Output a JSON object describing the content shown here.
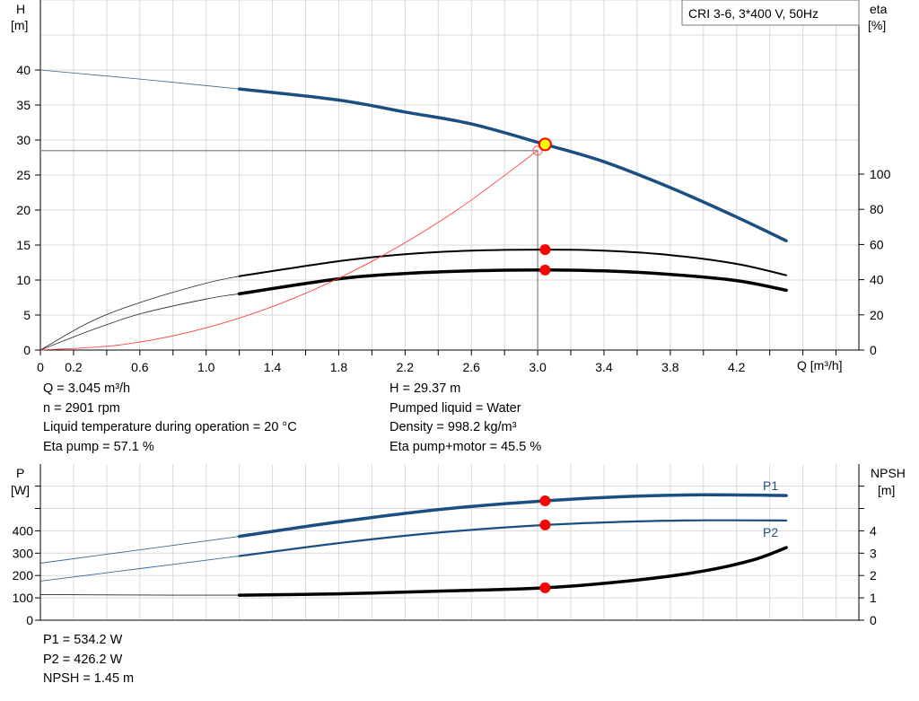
{
  "chart_data": [
    {
      "type": "line",
      "legend_box": "CRI 3-6, 3*400 V, 50Hz",
      "xlabel": "Q [m³/h]",
      "ylabel_left": [
        "H",
        "[m]"
      ],
      "ylabel_right": [
        "eta",
        "[%]"
      ],
      "xlim": [
        0,
        4.93
      ],
      "ylim_left": [
        0,
        50
      ],
      "ylim_right": [
        0,
        200
      ],
      "x_tick_labels": [
        "0",
        "0.2",
        "0.6",
        "1.0",
        "1.4",
        "1.8",
        "2.2",
        "2.6",
        "3.0",
        "3.4",
        "3.8",
        "4.2"
      ],
      "x_tick_values": [
        0,
        0.2,
        0.6,
        1.0,
        1.4,
        1.8,
        2.2,
        2.6,
        3.0,
        3.4,
        3.8,
        4.2
      ],
      "y_left_ticks": [
        0,
        5,
        10,
        15,
        20,
        25,
        30,
        35,
        40
      ],
      "y_right_ticks": [
        0,
        20,
        40,
        60,
        80,
        100
      ],
      "grid": true,
      "operating_range_q": [
        1.2,
        4.5
      ],
      "series": [
        {
          "id": "H",
          "axis": "left",
          "color": "#1a4f80",
          "points": [
            [
              0,
              40
            ],
            [
              0.6,
              38.7
            ],
            [
              1.2,
              37.3
            ],
            [
              1.8,
              35.7
            ],
            [
              2.2,
              34.0
            ],
            [
              2.6,
              32.3
            ],
            [
              3.045,
              29.37
            ],
            [
              3.4,
              26.9
            ],
            [
              3.8,
              23.2
            ],
            [
              4.2,
              19.0
            ],
            [
              4.5,
              15.6
            ]
          ]
        },
        {
          "id": "eta_pump",
          "axis": "right",
          "color": "#000000",
          "points": [
            [
              0,
              0
            ],
            [
              0.3,
              16
            ],
            [
              0.6,
              27
            ],
            [
              1.0,
              38
            ],
            [
              1.2,
              42
            ],
            [
              1.8,
              50.5
            ],
            [
              2.2,
              54.5
            ],
            [
              2.6,
              56.5
            ],
            [
              3.045,
              57.1
            ],
            [
              3.4,
              56.5
            ],
            [
              3.8,
              54
            ],
            [
              4.2,
              49
            ],
            [
              4.5,
              42.5
            ]
          ]
        },
        {
          "id": "eta_pump_motor",
          "axis": "right",
          "color": "#000000",
          "points": [
            [
              0,
              0
            ],
            [
              0.3,
              11
            ],
            [
              0.6,
              20.5
            ],
            [
              1.0,
              29
            ],
            [
              1.2,
              32
            ],
            [
              1.8,
              40.5
            ],
            [
              2.2,
              43.5
            ],
            [
              2.6,
              45
            ],
            [
              3.045,
              45.5
            ],
            [
              3.4,
              45
            ],
            [
              3.8,
              43
            ],
            [
              4.2,
              39.5
            ],
            [
              4.5,
              34
            ]
          ]
        },
        {
          "id": "system_curve",
          "axis": "left",
          "color": "#ff4040",
          "points": [
            [
              0,
              0
            ],
            [
              0.5,
              0.79
            ],
            [
              1.0,
              3.17
            ],
            [
              1.5,
              7.13
            ],
            [
              2.0,
              12.67
            ],
            [
              2.5,
              19.79
            ],
            [
              3.0,
              28.5
            ]
          ]
        }
      ],
      "duty_point": {
        "q": 3.045,
        "h": 29.37,
        "eta_pump": 57.1,
        "eta_pump_motor": 45.5
      },
      "requested_point": {
        "q": 3.0,
        "h": 28.5
      }
    },
    {
      "type": "line",
      "ylabel_left": [
        "P",
        "[W]"
      ],
      "ylabel_right": [
        "NPSH",
        "[m]"
      ],
      "xlim": [
        0,
        4.93
      ],
      "ylim_left": [
        0,
        700
      ],
      "ylim_right": [
        0,
        7
      ],
      "y_left_ticks": [
        0,
        100,
        200,
        300,
        400
      ],
      "y_left_unlabeled_ticks": [
        500,
        600
      ],
      "y_right_ticks": [
        0,
        1,
        2,
        3,
        4
      ],
      "grid": true,
      "series": [
        {
          "id": "P1",
          "name": "P1",
          "axis": "left",
          "color": "#1a4f80",
          "points": [
            [
              0,
              255
            ],
            [
              0.6,
              315
            ],
            [
              1.2,
              375
            ],
            [
              1.8,
              440
            ],
            [
              2.4,
              495
            ],
            [
              3.045,
              534.2
            ],
            [
              3.6,
              555
            ],
            [
              4.0,
              561
            ],
            [
              4.5,
              558
            ]
          ]
        },
        {
          "id": "P2",
          "name": "P2",
          "axis": "left",
          "color": "#1a4f80",
          "points": [
            [
              0,
              175
            ],
            [
              0.6,
              231
            ],
            [
              1.2,
              287
            ],
            [
              1.8,
              345
            ],
            [
              2.4,
              392
            ],
            [
              3.045,
              426.2
            ],
            [
              3.6,
              442
            ],
            [
              4.0,
              447
            ],
            [
              4.5,
              446
            ]
          ]
        },
        {
          "id": "NPSH",
          "axis": "right",
          "color": "#000000",
          "points": [
            [
              0,
              1.15
            ],
            [
              0.8,
              1.12
            ],
            [
              1.2,
              1.12
            ],
            [
              1.8,
              1.18
            ],
            [
              2.4,
              1.3
            ],
            [
              3.045,
              1.45
            ],
            [
              3.6,
              1.8
            ],
            [
              4.0,
              2.2
            ],
            [
              4.3,
              2.7
            ],
            [
              4.5,
              3.25
            ]
          ]
        }
      ],
      "duty_point": {
        "q": 3.045,
        "p1": 534.2,
        "p2": 426.2,
        "npsh": 1.45
      }
    }
  ],
  "info_top_left": [
    "Q = 3.045 m³/h",
    "n = 2901 rpm",
    "Liquid temperature during operation = 20 °C",
    "Eta pump = 57.1 %"
  ],
  "info_top_right": [
    "H = 29.37 m",
    "Pumped liquid = Water",
    "Density = 998.2 kg/m³",
    "Eta pump+motor = 45.5 %"
  ],
  "info_bottom": [
    "P1 = 534.2 W",
    "P2 = 426.2 W",
    "NPSH = 1.45 m"
  ]
}
